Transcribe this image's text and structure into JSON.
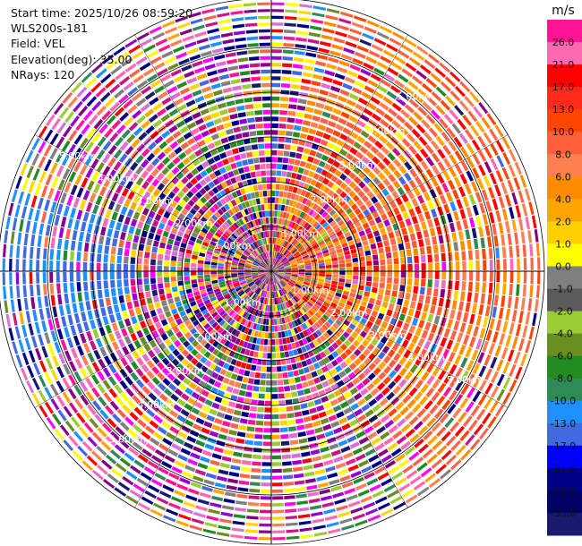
{
  "header": {
    "start_time": "Start time: 2025/10/26 08:59:20",
    "instrument": "WLS200s-181",
    "field": "Field: VEL",
    "elevation": "Elevation(deg): 35.00",
    "nrays": "NRays: 120"
  },
  "chart_data": {
    "type": "heatmap",
    "projection": "polar-ppi",
    "field": "VEL",
    "rays": 120,
    "range_labels": [
      "1.00km",
      "2.00km",
      "3.00km",
      "4.00km",
      "5.00km"
    ],
    "colorbar": {
      "unit": "m/s",
      "ticks": [
        "26.0",
        "21.0",
        "17.0",
        "13.0",
        "10.0",
        "8.0",
        "6.0",
        "4.0",
        "2.0",
        "1.0",
        "0.0",
        "-1.0",
        "-2.0",
        "-4.0",
        "-6.0",
        "-8.0",
        "-10.0",
        "-13.0",
        "-17.0",
        "-21.0",
        "-26.0",
        "-30.0"
      ],
      "colors": [
        "#ff1493",
        "#ff69b4",
        "#ff0000",
        "#ff2a1a",
        "#ff4500",
        "#ff5f3a",
        "#ff7f50",
        "#ff8c00",
        "#ffa500",
        "#ffd000",
        "#ffff00",
        "#808080",
        "#5a5a5a",
        "#9acd32",
        "#6b8e23",
        "#228b22",
        "#2e8b57",
        "#1e90ff",
        "#4169e1",
        "#0000ff",
        "#00008b",
        "#000066",
        "#191970"
      ]
    }
  }
}
